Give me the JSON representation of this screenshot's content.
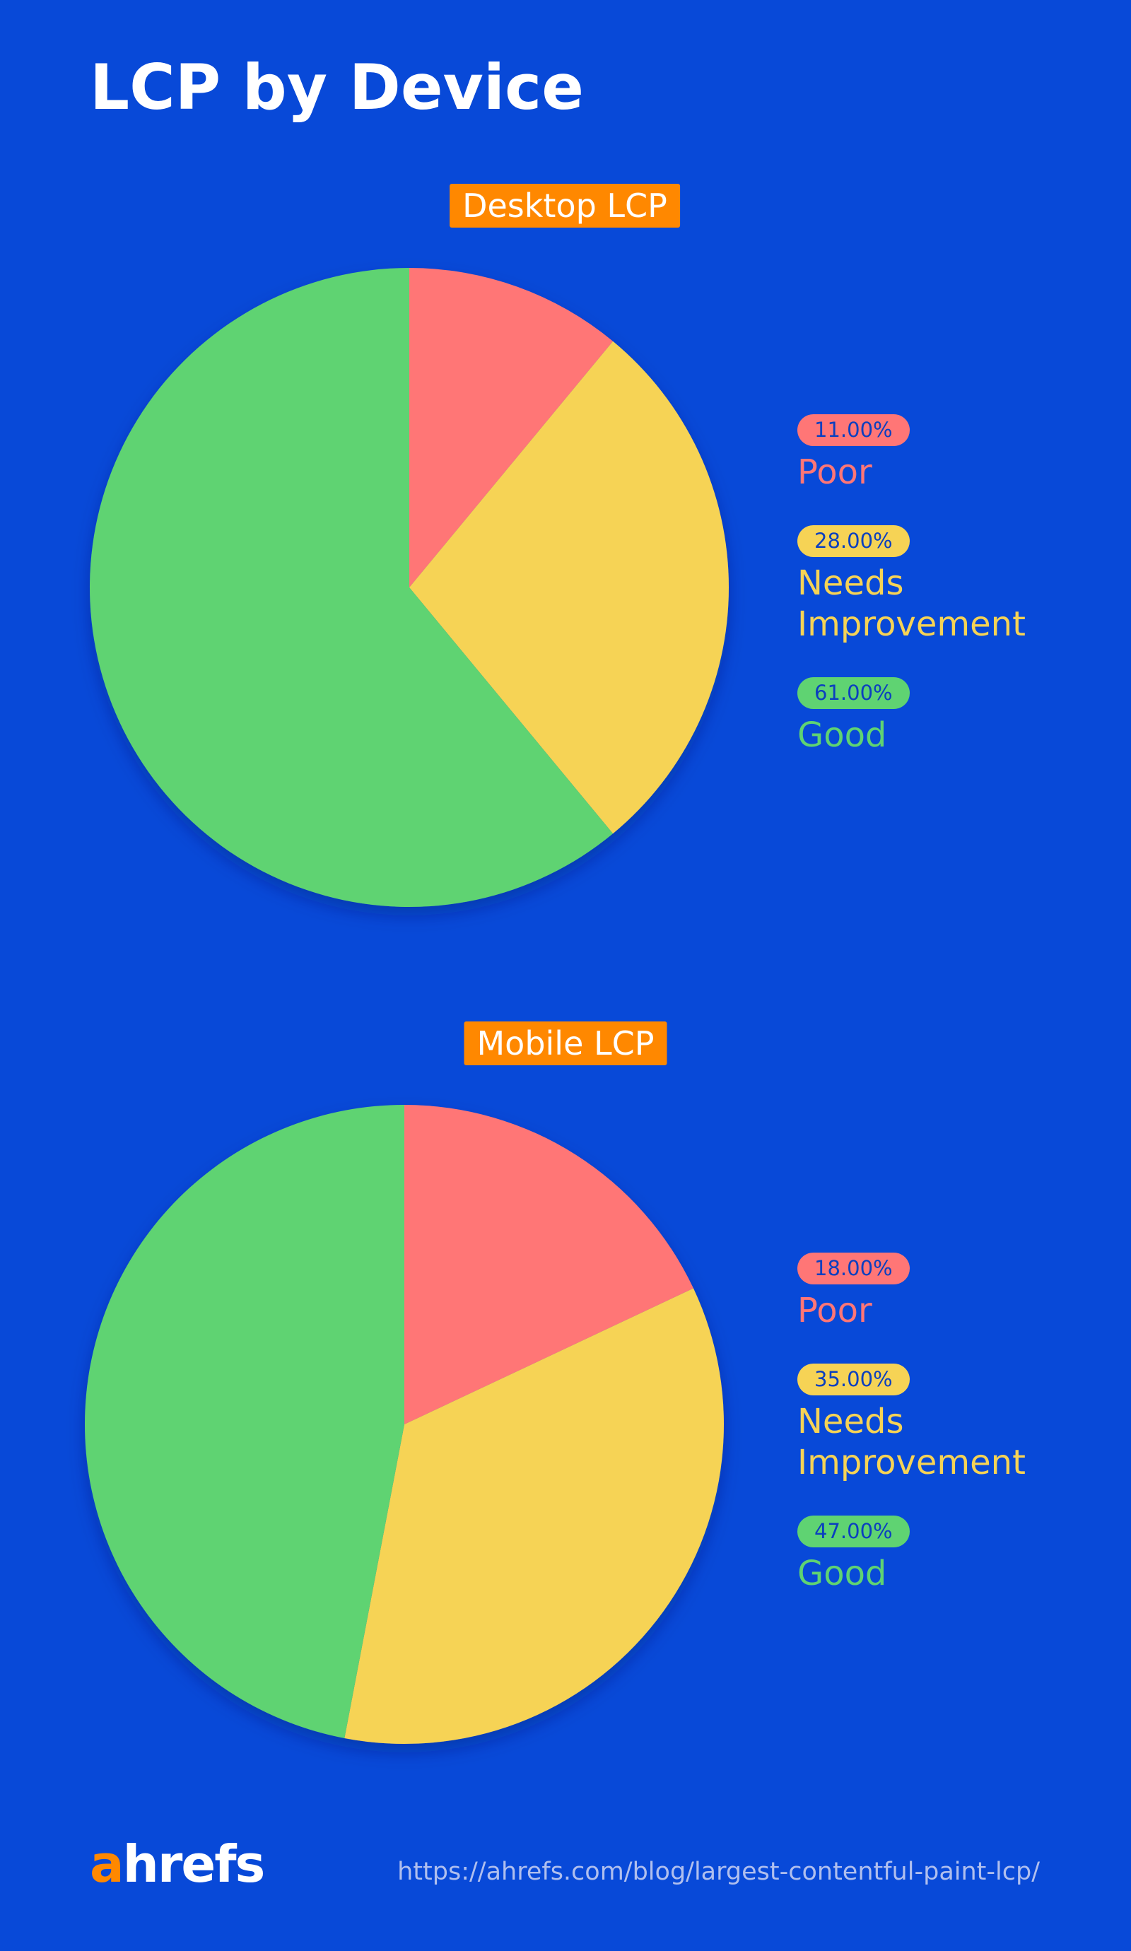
{
  "title": "LCP by Device",
  "chart_data": [
    {
      "type": "pie",
      "title": "Desktop LCP",
      "categories": [
        "Poor",
        "Needs Improvement",
        "Good"
      ],
      "values": [
        11,
        28,
        61
      ],
      "value_labels": [
        "11.00%",
        "28.00%",
        "61.00%"
      ],
      "colors": [
        "#ff7676",
        "#f6d355",
        "#5fd372"
      ]
    },
    {
      "type": "pie",
      "title": "Mobile LCP",
      "categories": [
        "Poor",
        "Needs Improvement",
        "Good"
      ],
      "values": [
        18,
        35,
        47
      ],
      "value_labels": [
        "18.00%",
        "35.00%",
        "47.00%"
      ],
      "colors": [
        "#ff7676",
        "#f6d355",
        "#5fd372"
      ]
    }
  ],
  "footer": {
    "logo": "ahrefs",
    "url": "https://ahrefs.com/blog/largest-contentful-paint-lcp/"
  }
}
